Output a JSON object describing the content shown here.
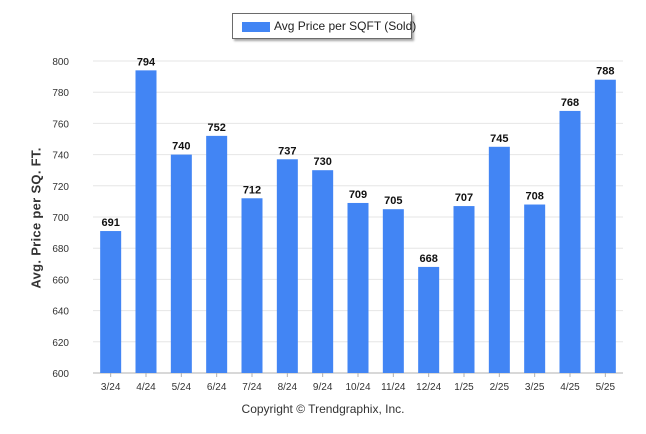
{
  "chart_data": {
    "type": "bar",
    "categories": [
      "3/24",
      "4/24",
      "5/24",
      "6/24",
      "7/24",
      "8/24",
      "9/24",
      "10/24",
      "11/24",
      "12/24",
      "1/25",
      "2/25",
      "3/25",
      "4/25",
      "5/25"
    ],
    "series": [
      {
        "name": "Avg Price per SQFT (Sold)",
        "values": [
          691,
          794,
          740,
          752,
          712,
          737,
          730,
          709,
          705,
          668,
          707,
          745,
          708,
          768,
          788
        ]
      }
    ],
    "data_labels": [
      "691",
      "794",
      "740",
      "752",
      "712",
      "737",
      "730",
      "709",
      "705",
      "668",
      "707",
      "745",
      "708",
      "768",
      "788"
    ],
    "ylabel": "Avg. Price per SQ. FT.",
    "ylim": [
      600,
      800
    ],
    "yticks": [
      600,
      620,
      640,
      660,
      680,
      700,
      720,
      740,
      760,
      780,
      800
    ],
    "grid": true,
    "legend_position": "top-center",
    "bar_color": "#4285f4"
  },
  "footer": "Copyright © Trendgraphix, Inc."
}
